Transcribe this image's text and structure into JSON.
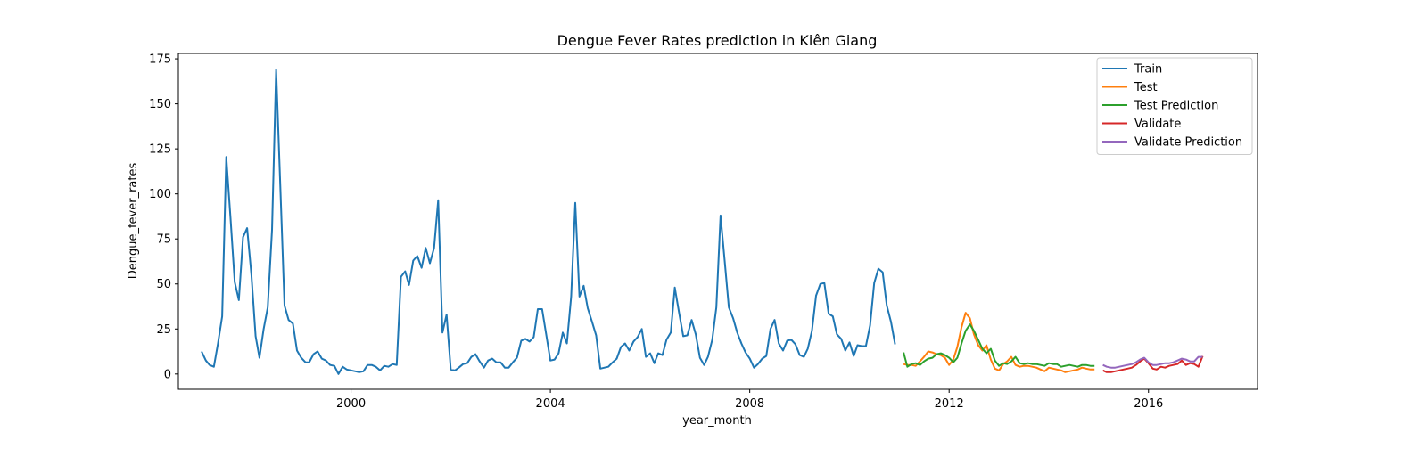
{
  "chart_data": {
    "type": "line",
    "title": "Dengue Fever Rates prediction in Kiên Giang",
    "xlabel": "year_month",
    "ylabel": "Dengue_fever_rates",
    "xlim": [
      "1996-07-15",
      "2018-03-10"
    ],
    "ylim": [
      -8.5,
      178.0
    ],
    "x_ticks": [
      {
        "date": "2000-01-01",
        "label": "2000"
      },
      {
        "date": "2004-01-01",
        "label": "2004"
      },
      {
        "date": "2008-01-01",
        "label": "2008"
      },
      {
        "date": "2012-01-01",
        "label": "2012"
      },
      {
        "date": "2016-01-01",
        "label": "2016"
      }
    ],
    "y_ticks": [
      0,
      25,
      50,
      75,
      100,
      125,
      150,
      175
    ],
    "grid": false,
    "legend_position": "top-right",
    "series": [
      {
        "name": "Train",
        "color": "#1f77b4",
        "x": [
          "1997-01",
          "1997-02",
          "1997-03",
          "1997-04",
          "1997-05",
          "1997-06",
          "1997-07",
          "1997-08",
          "1997-09",
          "1997-10",
          "1997-11",
          "1997-12",
          "1998-01",
          "1998-02",
          "1998-03",
          "1998-04",
          "1998-05",
          "1998-06",
          "1998-07",
          "1998-08",
          "1998-09",
          "1998-10",
          "1998-11",
          "1998-12",
          "1999-01",
          "1999-02",
          "1999-03",
          "1999-04",
          "1999-05",
          "1999-06",
          "1999-07",
          "1999-08",
          "1999-09",
          "1999-10",
          "1999-11",
          "1999-12",
          "2000-01",
          "2000-02",
          "2000-03",
          "2000-04",
          "2000-05",
          "2000-06",
          "2000-07",
          "2000-08",
          "2000-09",
          "2000-10",
          "2000-11",
          "2000-12",
          "2001-01",
          "2001-02",
          "2001-03",
          "2001-04",
          "2001-05",
          "2001-06",
          "2001-07",
          "2001-08",
          "2001-09",
          "2001-10",
          "2001-11",
          "2001-12",
          "2002-01",
          "2002-02",
          "2002-03",
          "2002-04",
          "2002-05",
          "2002-06",
          "2002-07",
          "2002-08",
          "2002-09",
          "2002-10",
          "2002-11",
          "2002-12",
          "2003-01",
          "2003-02",
          "2003-03",
          "2003-04",
          "2003-05",
          "2003-06",
          "2003-07",
          "2003-08",
          "2003-09",
          "2003-10",
          "2003-11",
          "2003-12",
          "2004-01",
          "2004-02",
          "2004-03",
          "2004-04",
          "2004-05",
          "2004-06",
          "2004-07",
          "2004-08",
          "2004-09",
          "2004-10",
          "2004-11",
          "2004-12",
          "2005-01",
          "2005-02",
          "2005-03",
          "2005-04",
          "2005-05",
          "2005-06",
          "2005-07",
          "2005-08",
          "2005-09",
          "2005-10",
          "2005-11",
          "2005-12",
          "2006-01",
          "2006-02",
          "2006-03",
          "2006-04",
          "2006-05",
          "2006-06",
          "2006-07",
          "2006-08",
          "2006-09",
          "2006-10",
          "2006-11",
          "2006-12",
          "2007-01",
          "2007-02",
          "2007-03",
          "2007-04",
          "2007-05",
          "2007-06",
          "2007-07",
          "2007-08",
          "2007-09",
          "2007-10",
          "2007-11",
          "2007-12",
          "2008-01",
          "2008-02",
          "2008-03",
          "2008-04",
          "2008-05",
          "2008-06",
          "2008-07",
          "2008-08",
          "2008-09",
          "2008-10",
          "2008-11",
          "2008-12",
          "2009-01",
          "2009-02",
          "2009-03",
          "2009-04",
          "2009-05",
          "2009-06",
          "2009-07",
          "2009-08",
          "2009-09",
          "2009-10",
          "2009-11",
          "2009-12",
          "2010-01",
          "2010-02",
          "2010-03",
          "2010-04",
          "2010-05",
          "2010-06",
          "2010-07",
          "2010-08",
          "2010-09",
          "2010-10",
          "2010-11",
          "2010-12"
        ],
        "y": [
          12.5,
          7.5,
          5.0,
          4.0,
          17.0,
          32.0,
          120.5,
          87.0,
          51.0,
          41.0,
          76.0,
          81.0,
          55.0,
          21.0,
          9.0,
          25.0,
          37.0,
          80.0,
          169.0,
          104.0,
          38.0,
          30.0,
          28.0,
          13.0,
          9.0,
          6.5,
          6.5,
          11.0,
          12.5,
          8.5,
          7.5,
          5.0,
          4.5,
          0.0,
          4.0,
          2.5,
          2.0,
          1.5,
          1.0,
          1.5,
          5.0,
          5.0,
          4.0,
          2.0,
          4.5,
          4.0,
          5.5,
          5.0,
          54.0,
          57.0,
          49.5,
          63.0,
          65.5,
          59.0,
          70.0,
          61.5,
          70.0,
          96.5,
          23.0,
          33.0,
          2.5,
          2.0,
          3.5,
          5.5,
          6.0,
          9.5,
          11.0,
          7.0,
          3.5,
          7.5,
          8.5,
          6.5,
          6.5,
          3.5,
          3.5,
          6.5,
          9.0,
          18.5,
          19.5,
          18.0,
          20.5,
          36.0,
          36.0,
          22.0,
          7.5,
          8.0,
          11.5,
          23.0,
          17.0,
          43.0,
          95.0,
          43.0,
          49.0,
          36.5,
          29.0,
          21.5,
          3.0,
          3.5,
          4.0,
          6.5,
          8.5,
          15.0,
          17.0,
          13.0,
          18.0,
          20.5,
          25.0,
          9.5,
          11.5,
          6.0,
          11.5,
          10.5,
          19.0,
          23.0,
          48.0,
          34.0,
          21.0,
          21.5,
          30.0,
          22.0,
          9.0,
          5.0,
          9.5,
          19.0,
          37.0,
          88.0,
          63.0,
          37.0,
          31.0,
          23.0,
          17.0,
          12.0,
          8.5,
          3.5,
          5.5,
          8.5,
          10.0,
          25.0,
          30.0,
          17.0,
          13.0,
          18.5,
          19.0,
          16.5,
          10.5,
          9.5,
          14.0,
          24.0,
          43.5,
          50.0,
          50.5,
          33.5,
          32.0,
          22.0,
          19.5,
          13.0,
          17.5,
          10.0,
          16.0,
          15.5,
          15.5,
          27.0,
          50.5,
          58.5,
          56.5,
          38.0,
          29.0,
          16.5
        ]
      },
      {
        "name": "Test",
        "color": "#ff7f0e",
        "x": [
          "2011-02",
          "2011-03",
          "2011-04",
          "2011-05",
          "2011-06",
          "2011-07",
          "2011-08",
          "2011-09",
          "2011-10",
          "2011-11",
          "2011-12",
          "2012-01",
          "2012-02",
          "2012-03",
          "2012-04",
          "2012-05",
          "2012-06",
          "2012-07",
          "2012-08",
          "2012-09",
          "2012-10",
          "2012-11",
          "2012-12",
          "2013-01",
          "2013-02",
          "2013-03",
          "2013-04",
          "2013-05",
          "2013-06",
          "2013-07",
          "2013-08",
          "2013-09",
          "2013-10",
          "2013-11",
          "2013-12",
          "2014-01",
          "2014-02",
          "2014-03",
          "2014-04",
          "2014-05",
          "2014-06",
          "2014-07",
          "2014-08",
          "2014-09",
          "2014-10",
          "2014-11",
          "2014-12"
        ],
        "y": [
          5.5,
          5.0,
          5.0,
          4.5,
          7.0,
          9.5,
          12.5,
          12.0,
          11.0,
          10.5,
          9.0,
          5.0,
          8.0,
          15.0,
          26.0,
          34.0,
          31.0,
          22.0,
          16.0,
          13.0,
          16.0,
          8.0,
          3.0,
          2.0,
          5.5,
          7.0,
          9.5,
          5.0,
          4.0,
          4.5,
          4.5,
          4.0,
          3.5,
          2.5,
          1.5,
          3.5,
          3.0,
          2.5,
          2.0,
          1.0,
          1.5,
          2.0,
          2.5,
          3.5,
          3.0,
          2.5,
          2.5
        ]
      },
      {
        "name": "Test Prediction",
        "color": "#2ca02c",
        "x": [
          "2011-02",
          "2011-03",
          "2011-04",
          "2011-05",
          "2011-06",
          "2011-07",
          "2011-08",
          "2011-09",
          "2011-10",
          "2011-11",
          "2011-12",
          "2012-01",
          "2012-02",
          "2012-03",
          "2012-04",
          "2012-05",
          "2012-06",
          "2012-07",
          "2012-08",
          "2012-09",
          "2012-10",
          "2012-11",
          "2012-12",
          "2013-01",
          "2013-02",
          "2013-03",
          "2013-04",
          "2013-05",
          "2013-06",
          "2013-07",
          "2013-08",
          "2013-09",
          "2013-10",
          "2013-11",
          "2013-12",
          "2014-01",
          "2014-02",
          "2014-03",
          "2014-04",
          "2014-05",
          "2014-06",
          "2014-07",
          "2014-08",
          "2014-09",
          "2014-10",
          "2014-11",
          "2014-12"
        ],
        "y": [
          12.0,
          4.0,
          5.5,
          6.0,
          5.0,
          7.0,
          8.5,
          9.0,
          11.0,
          11.5,
          10.5,
          9.0,
          6.5,
          9.0,
          17.0,
          24.0,
          27.5,
          24.0,
          19.0,
          14.0,
          11.5,
          14.0,
          7.5,
          4.5,
          6.0,
          5.5,
          7.0,
          9.5,
          6.0,
          5.5,
          6.0,
          5.5,
          5.5,
          5.0,
          4.5,
          6.0,
          5.5,
          5.5,
          4.0,
          4.5,
          5.0,
          4.5,
          4.0,
          5.0,
          5.0,
          4.5,
          4.5
        ]
      },
      {
        "name": "Validate",
        "color": "#d62728",
        "x": [
          "2015-02",
          "2015-03",
          "2015-04",
          "2015-05",
          "2015-06",
          "2015-07",
          "2015-08",
          "2015-09",
          "2015-10",
          "2015-11",
          "2015-12",
          "2016-01",
          "2016-02",
          "2016-03",
          "2016-04",
          "2016-05",
          "2016-06",
          "2016-07",
          "2016-08",
          "2016-09",
          "2016-10",
          "2016-11",
          "2016-12",
          "2017-01",
          "2017-02"
        ],
        "y": [
          2.0,
          1.0,
          1.0,
          1.5,
          2.0,
          2.5,
          3.0,
          3.5,
          5.0,
          7.0,
          8.5,
          6.0,
          3.0,
          2.5,
          4.0,
          3.5,
          4.5,
          5.0,
          5.5,
          7.5,
          5.0,
          6.0,
          5.5,
          4.0,
          10.0
        ]
      },
      {
        "name": "Validate Prediction",
        "color": "#9467bd",
        "x": [
          "2015-02",
          "2015-03",
          "2015-04",
          "2015-05",
          "2015-06",
          "2015-07",
          "2015-08",
          "2015-09",
          "2015-10",
          "2015-11",
          "2015-12",
          "2016-01",
          "2016-02",
          "2016-03",
          "2016-04",
          "2016-05",
          "2016-06",
          "2016-07",
          "2016-08",
          "2016-09",
          "2016-10",
          "2016-11",
          "2016-12",
          "2017-01",
          "2017-02"
        ],
        "y": [
          5.0,
          4.0,
          3.5,
          3.5,
          4.0,
          4.5,
          5.0,
          5.5,
          6.5,
          8.0,
          9.0,
          6.5,
          5.0,
          5.0,
          5.5,
          6.0,
          6.0,
          6.5,
          7.5,
          8.5,
          8.0,
          7.0,
          7.0,
          9.5,
          9.5
        ]
      }
    ]
  }
}
